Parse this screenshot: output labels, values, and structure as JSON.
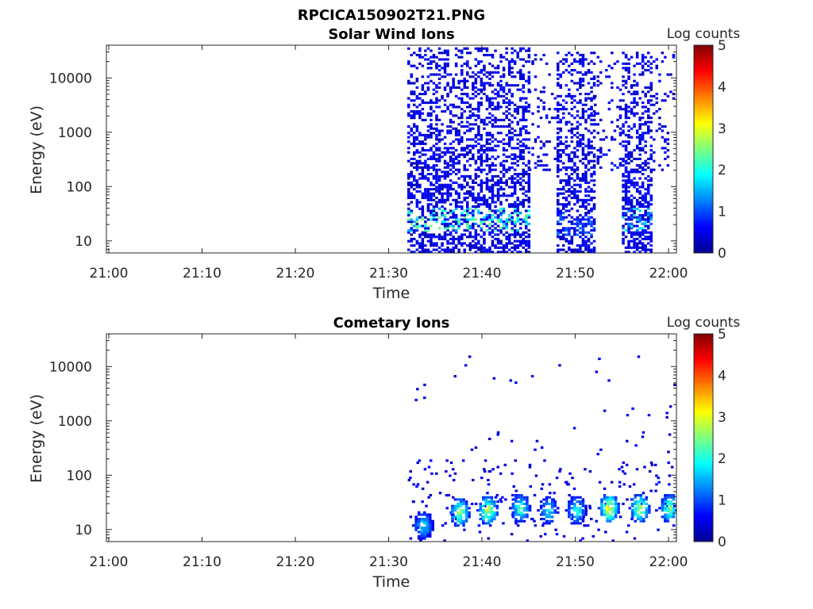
{
  "figure_title": "RPCICA150902T21.PNG",
  "colorbar": {
    "label": "Log counts",
    "ticks": [
      "5",
      "4",
      "3",
      "2",
      "1",
      "0"
    ],
    "range": [
      0,
      5
    ],
    "colormap": "jet"
  },
  "chart_data": [
    {
      "type": "heatmap",
      "title": "Solar Wind Ions",
      "xlabel": "Time",
      "ylabel": "Energy (eV)",
      "x_ticks": [
        "21:00",
        "21:10",
        "21:20",
        "21:30",
        "21:40",
        "21:50",
        "22:00"
      ],
      "y_ticks": [
        "10",
        "100",
        "1000",
        "10000"
      ],
      "y_scale": "log",
      "ylim": [
        6,
        40000
      ],
      "xlim": [
        "21:00",
        "22:01"
      ],
      "regions": [
        {
          "start": "21:32",
          "end": "21:45",
          "emin": 6,
          "emax": 35000,
          "density": 0.55,
          "peak_energy": 25,
          "peak_log_counts": 2.5
        },
        {
          "start": "21:45",
          "end": "21:48",
          "emin": 200,
          "emax": 30000,
          "density": 0.15,
          "peak_energy": 0,
          "peak_log_counts": 0.3
        },
        {
          "start": "21:48",
          "end": "21:52",
          "emin": 6,
          "emax": 30000,
          "density": 0.55,
          "peak_energy": 20,
          "peak_log_counts": 1.2
        },
        {
          "start": "21:52",
          "end": "21:55",
          "emin": 200,
          "emax": 30000,
          "density": 0.15,
          "peak_energy": 0,
          "peak_log_counts": 0.3
        },
        {
          "start": "21:55",
          "end": "21:58",
          "emin": 6,
          "emax": 30000,
          "density": 0.55,
          "peak_energy": 25,
          "peak_log_counts": 2.0
        },
        {
          "start": "21:58",
          "end": "22:01",
          "emin": 200,
          "emax": 30000,
          "density": 0.15,
          "peak_energy": 0,
          "peak_log_counts": 0.3
        }
      ]
    },
    {
      "type": "heatmap",
      "title": "Cometary Ions",
      "xlabel": "Time",
      "ylabel": "Energy (eV)",
      "x_ticks": [
        "21:00",
        "21:10",
        "21:20",
        "21:30",
        "21:40",
        "21:50",
        "22:00"
      ],
      "y_ticks": [
        "10",
        "100",
        "1000",
        "10000"
      ],
      "y_scale": "log",
      "ylim": [
        6,
        40000
      ],
      "xlim": [
        "21:00",
        "22:01"
      ],
      "bursts": [
        {
          "time": "21:33.6",
          "peak_energy": 12,
          "peak_log_counts": 2.0
        },
        {
          "time": "21:37.5",
          "peak_energy": 20,
          "peak_log_counts": 2.9
        },
        {
          "time": "21:40.5",
          "peak_energy": 22,
          "peak_log_counts": 3.2
        },
        {
          "time": "21:44.0",
          "peak_energy": 25,
          "peak_log_counts": 2.5
        },
        {
          "time": "21:47.0",
          "peak_energy": 22,
          "peak_log_counts": 2.0
        },
        {
          "time": "21:50.0",
          "peak_energy": 22,
          "peak_log_counts": 2.2
        },
        {
          "time": "21:53.5",
          "peak_energy": 25,
          "peak_log_counts": 3.4
        },
        {
          "time": "21:56.8",
          "peak_energy": 25,
          "peak_log_counts": 3.1
        },
        {
          "time": "22:00.0",
          "peak_energy": 25,
          "peak_log_counts": 2.8
        }
      ]
    }
  ]
}
